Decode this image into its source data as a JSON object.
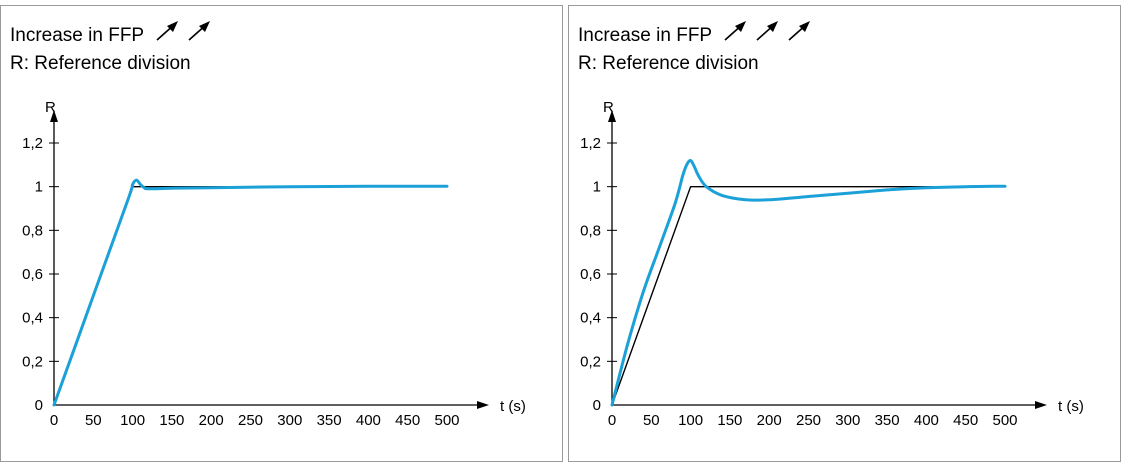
{
  "charts": [
    {
      "title_line1": "Increase in FFP",
      "title_line2": "R: Reference division",
      "arrow_count": 2
    },
    {
      "title_line1": "Increase in FFP",
      "title_line2": "R: Reference division",
      "arrow_count": 3
    }
  ],
  "colors": {
    "response": "#1ba1d8",
    "reference": "#000000"
  },
  "chart_data": [
    {
      "type": "line",
      "xlabel": "t (s)",
      "ylabel": "R",
      "xlim": [
        0,
        500
      ],
      "ylim": [
        0,
        1.2
      ],
      "x_ticks": [
        "0",
        "50",
        "100",
        "150",
        "200",
        "250",
        "300",
        "350",
        "400",
        "450",
        "500"
      ],
      "y_ticks": [
        "0",
        "0,2",
        "0,4",
        "0,6",
        "0,8",
        "1",
        "1,2"
      ],
      "grid": false,
      "series": [
        {
          "color": "#000000",
          "x": [
            0,
            100,
            500
          ],
          "y": [
            0,
            1.0,
            1.0
          ]
        },
        {
          "color": "#1ba1d8",
          "x": [
            0,
            50,
            95,
            100,
            105,
            110,
            115,
            120,
            150,
            200,
            300,
            400,
            500
          ],
          "y": [
            0,
            0.5,
            0.95,
            1.01,
            1.03,
            1.01,
            0.995,
            0.99,
            0.993,
            0.995,
            1.0,
            1.002,
            1.002
          ]
        }
      ]
    },
    {
      "type": "line",
      "xlabel": "t (s)",
      "ylabel": "R",
      "xlim": [
        0,
        500
      ],
      "ylim": [
        0,
        1.2
      ],
      "x_ticks": [
        "0",
        "50",
        "100",
        "150",
        "200",
        "250",
        "300",
        "350",
        "400",
        "450",
        "500"
      ],
      "y_ticks": [
        "0",
        "0,2",
        "0,4",
        "0,6",
        "0,8",
        "1",
        "1,2"
      ],
      "grid": false,
      "series": [
        {
          "color": "#000000",
          "x": [
            0,
            100,
            500
          ],
          "y": [
            0,
            1.0,
            1.0
          ]
        },
        {
          "color": "#1ba1d8",
          "x": [
            0,
            20,
            40,
            60,
            80,
            90,
            95,
            100,
            105,
            110,
            120,
            140,
            170,
            200,
            250,
            300,
            350,
            400,
            450,
            500
          ],
          "y": [
            0,
            0.28,
            0.52,
            0.72,
            0.92,
            1.05,
            1.1,
            1.12,
            1.09,
            1.05,
            1.0,
            0.96,
            0.94,
            0.94,
            0.955,
            0.97,
            0.985,
            0.995,
            1.0,
            1.002
          ]
        }
      ]
    }
  ]
}
